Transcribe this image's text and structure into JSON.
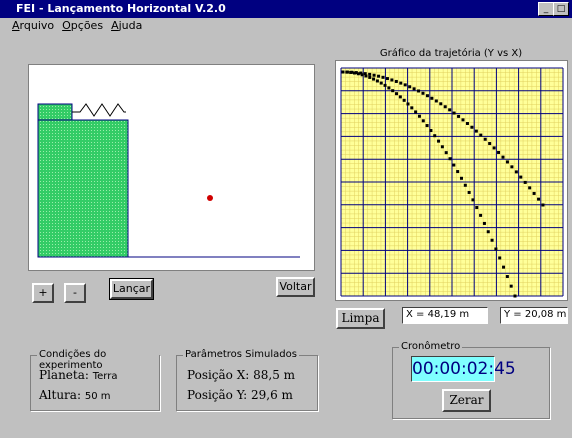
{
  "window": {
    "title": "FEI - Lançamento Horizontal V.2.0"
  },
  "menu": [
    "Arquivo",
    "Opções",
    "Ajuda"
  ],
  "graph": {
    "title": "Gráfico da trajetória (Y vs X)"
  },
  "buttons": {
    "plus": "+",
    "minus": "-",
    "launch": "Lançar",
    "back": "Voltar",
    "clear": "Limpa"
  },
  "fields": {
    "x": "X = 48,19 m",
    "y": "Y = 20,08 m"
  },
  "conditions": {
    "title": "Condições do experimento",
    "planet_label": "Planeta:",
    "planet": "Terra",
    "height_label": "Altura:",
    "height": "50 m"
  },
  "params": {
    "title": "Parâmetros Simulados",
    "pos_x": "Posição X: 88,5 m",
    "pos_y": "Posição Y: 29,6 m"
  },
  "timer": {
    "title": "Cronômetro",
    "display": "00:00:02:45",
    "reset": "Zerar"
  }
}
